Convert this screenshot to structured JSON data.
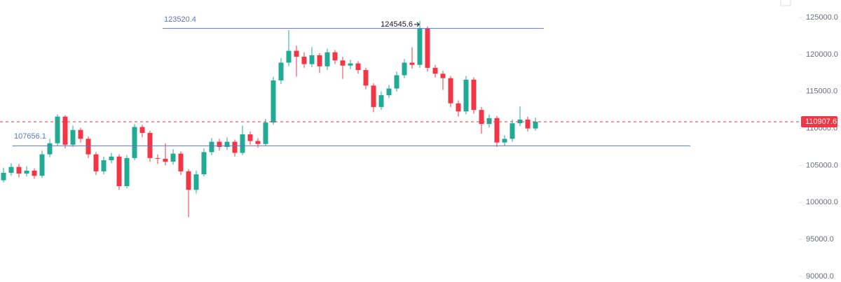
{
  "chart_data": {
    "type": "candlestick",
    "open": [
      103000,
      104000,
      104800,
      103900,
      104300,
      103600,
      106500,
      108000,
      111600,
      107800,
      109800,
      108600,
      106500,
      104200,
      105700,
      106200,
      102200,
      106000,
      110200,
      109400,
      106000,
      105900,
      105500,
      106600,
      104200,
      101700,
      103800,
      106800,
      108200,
      107500,
      108200,
      106700,
      109200,
      108300,
      107900,
      110800,
      116500,
      118900,
      120500,
      119700,
      118700,
      119900,
      118400,
      120300,
      119200,
      118500,
      118800,
      117900,
      115800,
      112900,
      114500,
      115400,
      117200,
      118900,
      118600,
      123500,
      118200,
      117400,
      116800,
      113400,
      112300,
      116600,
      112500,
      110600,
      111400,
      108100,
      108600,
      110700,
      111200,
      110000
    ],
    "high": [
      104700,
      105300,
      105200,
      104900,
      104600,
      107000,
      108600,
      111900,
      111800,
      110400,
      110100,
      108900,
      106800,
      106200,
      106700,
      106500,
      106400,
      110600,
      110500,
      109700,
      106500,
      108000,
      107200,
      106900,
      104500,
      104300,
      107300,
      108700,
      108600,
      108800,
      108500,
      110400,
      109600,
      108700,
      111300,
      117000,
      119500,
      123300,
      121200,
      120300,
      121000,
      120200,
      120800,
      120600,
      119700,
      119300,
      119100,
      118200,
      116100,
      115000,
      115900,
      117700,
      119400,
      121000,
      124545.6,
      123800,
      118600,
      117800,
      117100,
      113800,
      117100,
      116900,
      112900,
      111900,
      111700,
      109100,
      111200,
      113000,
      111600,
      111500
    ],
    "low": [
      102700,
      103600,
      103400,
      103500,
      103200,
      103300,
      106100,
      107700,
      107300,
      107500,
      108100,
      106000,
      103700,
      103800,
      105300,
      101700,
      101900,
      105700,
      108800,
      105500,
      105200,
      105000,
      105100,
      103700,
      98000,
      101200,
      103500,
      106400,
      107000,
      107100,
      106200,
      106400,
      107800,
      107400,
      107600,
      110500,
      116000,
      118400,
      117000,
      118200,
      118300,
      117500,
      117900,
      118700,
      116700,
      118000,
      117400,
      115300,
      112200,
      112500,
      114100,
      115000,
      116800,
      118100,
      118200,
      117700,
      116900,
      115200,
      112900,
      111600,
      111900,
      112000,
      109300,
      110100,
      107500,
      107600,
      108200,
      110300,
      109600,
      109700
    ],
    "close": [
      104000,
      104800,
      103900,
      104300,
      103600,
      106500,
      108000,
      111600,
      107800,
      109800,
      108600,
      106500,
      104200,
      105700,
      106200,
      102200,
      106000,
      110200,
      109400,
      106000,
      105900,
      105500,
      106600,
      104200,
      101700,
      103800,
      106800,
      108200,
      107500,
      108200,
      106700,
      109200,
      108300,
      107900,
      110800,
      116500,
      118900,
      120500,
      119700,
      118700,
      119900,
      118400,
      120300,
      119200,
      118500,
      118800,
      117900,
      115800,
      112900,
      114500,
      115400,
      117200,
      118900,
      118600,
      123500,
      118200,
      117400,
      116800,
      113400,
      112300,
      116600,
      112500,
      110600,
      111400,
      108100,
      108600,
      110700,
      111200,
      110000,
      110907.6
    ],
    "up_color": "#22ab94",
    "down_color": "#f23645",
    "levels": [
      {
        "value": 123520.4,
        "color": "#5b74c9"
      },
      {
        "value": 107656.1,
        "color": "#5b74c9"
      }
    ],
    "last_price_color": "#f23645",
    "ylim": [
      89240,
      127370
    ],
    "yticks": [
      {
        "value": 90000,
        "label": "90000.0"
      },
      {
        "value": 95000,
        "label": "95000.0"
      },
      {
        "value": 100000,
        "label": "100000.0"
      },
      {
        "value": 105000,
        "label": "105000.0"
      },
      {
        "value": 110000,
        "label": "110000.0"
      },
      {
        "value": 115000,
        "label": "115000.0"
      },
      {
        "value": 120000,
        "label": "120000.0"
      },
      {
        "value": 125000,
        "label": "125000.0"
      }
    ],
    "grid": false
  }
}
